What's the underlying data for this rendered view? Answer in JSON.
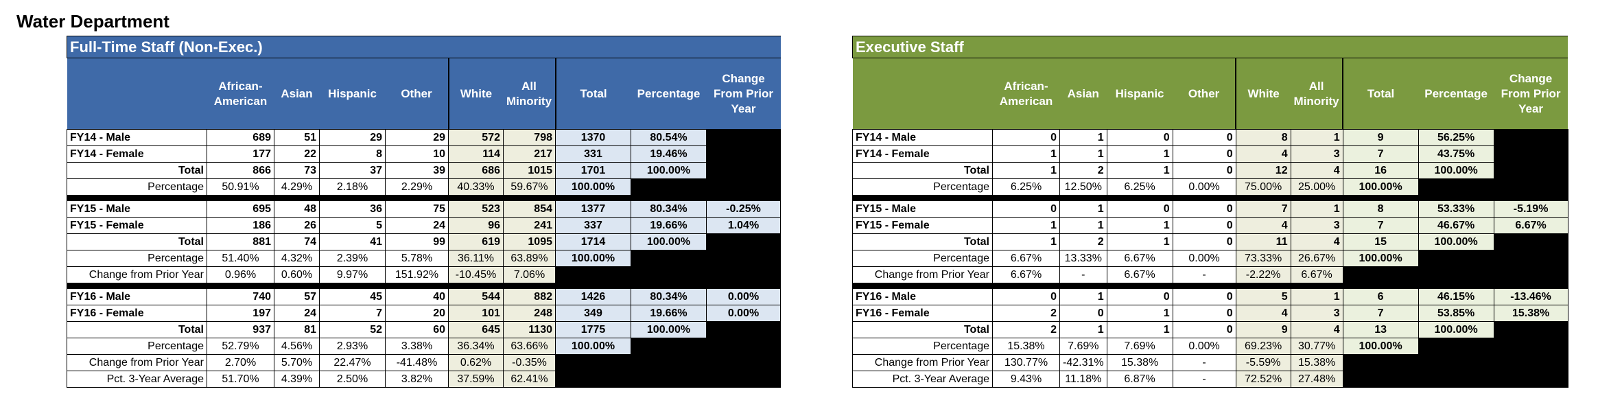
{
  "page_title": "Water Department",
  "columns": {
    "african_american": "African-American",
    "asian": "Asian",
    "hispanic": "Hispanic",
    "other": "Other",
    "white": "White",
    "all_minority": "All Minority",
    "total": "Total",
    "percentage": "Percentage",
    "change": "Change From Prior Year"
  },
  "labels": {
    "fy14_male": "FY14 - Male",
    "fy14_female": "FY14 - Female",
    "fy15_male": "FY15 - Male",
    "fy15_female": "FY15 - Female",
    "fy16_male": "FY16 - Male",
    "fy16_female": "FY16 - Female",
    "total": "Total",
    "percentage": "Percentage",
    "change_prior": "Change from Prior Year",
    "change_prior_alt": "Change from Prior Year",
    "avg3": "Pct. 3-Year Average"
  },
  "full_time": {
    "title": "Full-Time Staff (Non-Exec.)",
    "fy14": {
      "male": [
        "689",
        "51",
        "29",
        "29",
        "572",
        "798",
        "1370",
        "80.54%",
        ""
      ],
      "female": [
        "177",
        "22",
        "8",
        "10",
        "114",
        "217",
        "331",
        "19.46%",
        ""
      ],
      "total": [
        "866",
        "73",
        "37",
        "39",
        "686",
        "1015",
        "1701",
        "100.00%"
      ],
      "pct": [
        "50.91%",
        "4.29%",
        "2.18%",
        "2.29%",
        "40.33%",
        "59.67%",
        "100.00%"
      ]
    },
    "fy15": {
      "male": [
        "695",
        "48",
        "36",
        "75",
        "523",
        "854",
        "1377",
        "80.34%",
        "-0.25%"
      ],
      "female": [
        "186",
        "26",
        "5",
        "24",
        "96",
        "241",
        "337",
        "19.66%",
        "1.04%"
      ],
      "total": [
        "881",
        "74",
        "41",
        "99",
        "619",
        "1095",
        "1714",
        "100.00%"
      ],
      "pct": [
        "51.40%",
        "4.32%",
        "2.39%",
        "5.78%",
        "36.11%",
        "63.89%",
        "100.00%"
      ],
      "change": [
        "0.96%",
        "0.60%",
        "9.97%",
        "151.92%",
        "-10.45%",
        "7.06%"
      ]
    },
    "fy16": {
      "male": [
        "740",
        "57",
        "45",
        "40",
        "544",
        "882",
        "1426",
        "80.34%",
        "0.00%"
      ],
      "female": [
        "197",
        "24",
        "7",
        "20",
        "101",
        "248",
        "349",
        "19.66%",
        "0.00%"
      ],
      "total": [
        "937",
        "81",
        "52",
        "60",
        "645",
        "1130",
        "1775",
        "100.00%"
      ],
      "pct": [
        "52.79%",
        "4.56%",
        "2.93%",
        "3.38%",
        "36.34%",
        "63.66%",
        "100.00%"
      ],
      "change": [
        "2.70%",
        "5.70%",
        "22.47%",
        "-41.48%",
        "0.62%",
        "-0.35%"
      ],
      "avg3": [
        "51.70%",
        "4.39%",
        "2.50%",
        "3.82%",
        "37.59%",
        "62.41%"
      ]
    }
  },
  "executive": {
    "title": "Executive Staff",
    "fy14": {
      "male": [
        "0",
        "1",
        "0",
        "0",
        "8",
        "1",
        "9",
        "56.25%",
        ""
      ],
      "female": [
        "1",
        "1",
        "1",
        "0",
        "4",
        "3",
        "7",
        "43.75%",
        ""
      ],
      "total": [
        "1",
        "2",
        "1",
        "0",
        "12",
        "4",
        "16",
        "100.00%"
      ],
      "pct": [
        "6.25%",
        "12.50%",
        "6.25%",
        "0.00%",
        "75.00%",
        "25.00%",
        "100.00%"
      ]
    },
    "fy15": {
      "male": [
        "0",
        "1",
        "0",
        "0",
        "7",
        "1",
        "8",
        "53.33%",
        "-5.19%"
      ],
      "female": [
        "1",
        "1",
        "1",
        "0",
        "4",
        "3",
        "7",
        "46.67%",
        "6.67%"
      ],
      "total": [
        "1",
        "2",
        "1",
        "0",
        "11",
        "4",
        "15",
        "100.00%"
      ],
      "pct": [
        "6.67%",
        "13.33%",
        "6.67%",
        "0.00%",
        "73.33%",
        "26.67%",
        "100.00%"
      ],
      "change": [
        "6.67%",
        "-",
        "6.67%",
        "-",
        "-2.22%",
        "6.67%"
      ]
    },
    "fy16": {
      "male": [
        "0",
        "1",
        "0",
        "0",
        "5",
        "1",
        "6",
        "46.15%",
        "-13.46%"
      ],
      "female": [
        "2",
        "0",
        "1",
        "0",
        "4",
        "3",
        "7",
        "53.85%",
        "15.38%"
      ],
      "total": [
        "2",
        "1",
        "1",
        "0",
        "9",
        "4",
        "13",
        "100.00%"
      ],
      "pct": [
        "15.38%",
        "7.69%",
        "7.69%",
        "0.00%",
        "69.23%",
        "30.77%",
        "100.00%"
      ],
      "change": [
        "130.77%",
        "-42.31%",
        "15.38%",
        "-",
        "-5.59%",
        "15.38%"
      ],
      "avg3": [
        "9.43%",
        "11.18%",
        "6.87%",
        "-",
        "72.52%",
        "27.48%"
      ]
    }
  }
}
